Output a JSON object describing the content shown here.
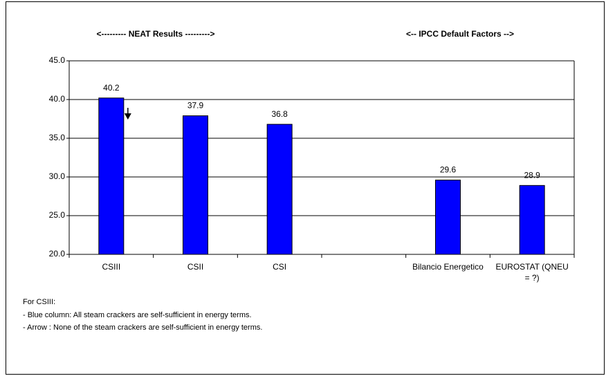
{
  "chart_data": {
    "type": "bar",
    "annotations": [
      "<--------- NEAT Results --------->",
      "<-- IPCC Default Factors -->"
    ],
    "categories": [
      "CSIII",
      "CSII",
      "CSI",
      null,
      "Bilancio Energetico",
      "EUROSTAT (QNEU = ?)"
    ],
    "values": [
      40.2,
      37.9,
      36.8,
      null,
      29.6,
      28.9
    ],
    "color": "#0000ff",
    "ylim": [
      20,
      45
    ],
    "yticks": [
      {
        "value": 20,
        "label": "20.0"
      },
      {
        "value": 25,
        "label": "25.0"
      },
      {
        "value": 30,
        "label": "30.0"
      },
      {
        "value": 35,
        "label": "35.0"
      },
      {
        "value": 40,
        "label": "40.0"
      },
      {
        "value": 45,
        "label": "45.0"
      }
    ],
    "grid": true,
    "notes": [
      "For CSIII:",
      "- Blue column:  All  steam crackers are self-sufficient in energy terms.",
      "- Arrow : None of the steam crackers are self-sufficient in energy terms."
    ]
  }
}
